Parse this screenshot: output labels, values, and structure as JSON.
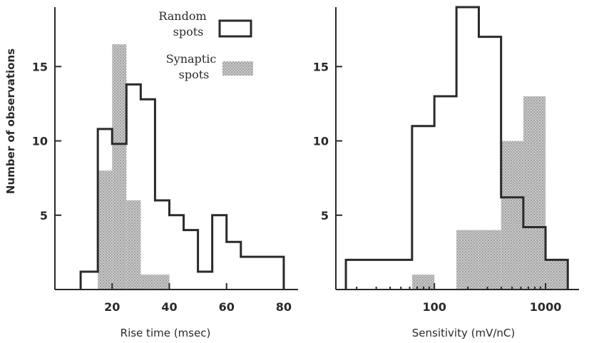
{
  "chart_data": [
    {
      "type": "bar",
      "panel": "left",
      "xlabel": "Rise time (msec)",
      "ylabel": "Number of observations",
      "xlim": [
        0,
        85
      ],
      "ylim": [
        0,
        19
      ],
      "x_ticks": [
        20,
        40,
        60,
        80
      ],
      "y_ticks": [
        5,
        10,
        15
      ],
      "bin_edges": [
        9,
        15,
        20,
        25,
        30,
        35,
        40,
        45,
        50,
        55,
        60,
        65,
        80
      ],
      "series": [
        {
          "name": "Random spots",
          "style": "outline",
          "values": [
            1.2,
            10.8,
            9.8,
            13.8,
            12.8,
            6,
            5,
            4,
            1.2,
            5,
            3.2,
            2.2
          ]
        },
        {
          "name": "Synaptic spots",
          "style": "stippled",
          "values": [
            0,
            8,
            16.5,
            6,
            1,
            1,
            0,
            0,
            0,
            0,
            0,
            0
          ]
        }
      ],
      "legend": [
        {
          "label_line1": "Random",
          "label_line2": "spots",
          "style": "outline"
        },
        {
          "label_line1": "Synaptic",
          "label_line2": "spots",
          "style": "stippled"
        }
      ],
      "legend_position": "top-right"
    },
    {
      "type": "bar",
      "panel": "right",
      "xlabel": "Sensitivity (mV/nC)",
      "x_scale": "log",
      "xlim": [
        13,
        2000
      ],
      "ylim": [
        0,
        19
      ],
      "x_ticks": [
        100,
        1000
      ],
      "y_ticks": [
        5,
        10,
        15
      ],
      "bin_edges": [
        16,
        63,
        100,
        158,
        251,
        398,
        631,
        1000,
        1585
      ],
      "series": [
        {
          "name": "Random spots",
          "style": "outline",
          "values": [
            2,
            11,
            13,
            19,
            17,
            6.2,
            4.2,
            2
          ]
        },
        {
          "name": "Synaptic spots",
          "style": "stippled",
          "values": [
            0,
            1,
            0,
            4,
            4,
            10,
            13,
            2
          ]
        }
      ]
    }
  ],
  "colors": {
    "ink": "#2a2a2a",
    "stipple_fill": "#c4c4c4"
  }
}
